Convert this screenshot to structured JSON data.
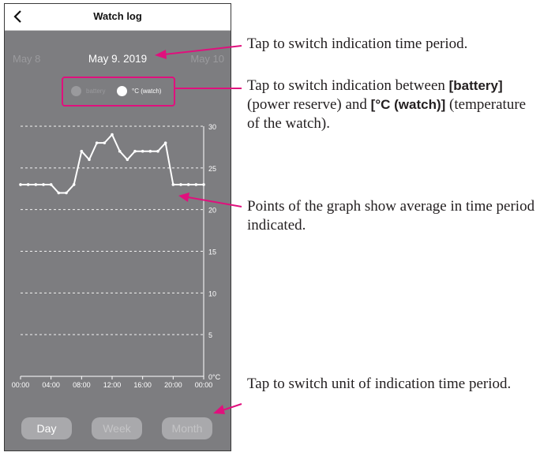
{
  "header": {
    "title": "Watch log",
    "back_icon": "chevron-left-icon"
  },
  "date_nav": {
    "prev": "May 8",
    "current": "May 9. 2019",
    "next": "May 10"
  },
  "toggle": {
    "battery_label": "battery",
    "watch_label": "°C (watch)",
    "selected": "°C (watch)"
  },
  "tabs": {
    "day": "Day",
    "week": "Week",
    "month": "Month",
    "selected": "Day"
  },
  "chart_data": {
    "type": "line",
    "x": [
      "00:00",
      "01:00",
      "02:00",
      "03:00",
      "04:00",
      "05:00",
      "06:00",
      "07:00",
      "08:00",
      "09:00",
      "10:00",
      "11:00",
      "12:00",
      "13:00",
      "14:00",
      "15:00",
      "16:00",
      "17:00",
      "18:00",
      "19:00",
      "20:00",
      "21:00",
      "22:00",
      "23:00",
      "24:00"
    ],
    "values": [
      23,
      23,
      23,
      23,
      23,
      22,
      22,
      23,
      27,
      26,
      28,
      28,
      29,
      27,
      26,
      27,
      27,
      27,
      27,
      28,
      23,
      23,
      23,
      23,
      23
    ],
    "x_tick_labels": [
      "00:00",
      "04:00",
      "08:00",
      "12:00",
      "16:00",
      "20:00",
      "00:00"
    ],
    "y_tick_labels": [
      "30",
      "25",
      "20",
      "15",
      "10",
      "5",
      "0°C"
    ],
    "ylim": [
      0,
      30
    ],
    "grid": "dashed horizontal",
    "line_color": "#ffffff"
  },
  "callouts": {
    "c1": "Tap to switch indication time period.",
    "c2_pre": "Tap to switch indication between ",
    "c2_b1": "[battery]",
    "c2_mid": " (power reserve) and ",
    "c2_b2": "[°C (watch)]",
    "c2_post": " (temperature of the watch).",
    "c3": "Points of the graph show average in time period indicated.",
    "c4": "Tap to switch unit of indication time period."
  },
  "colors": {
    "accent": "#e0107d",
    "panel": "#7d7d80"
  }
}
